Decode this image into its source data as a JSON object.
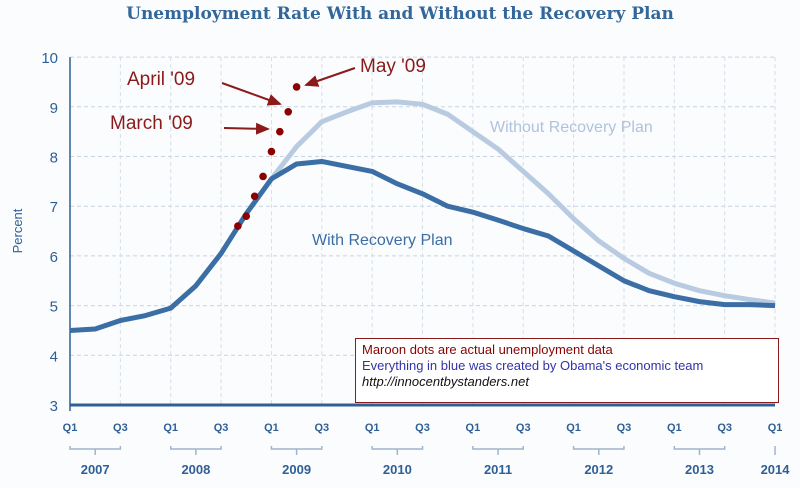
{
  "title": "Unemployment Rate With and Without the Recovery Plan",
  "chart_data": {
    "type": "line",
    "title": "Unemployment Rate With and Without the Recovery Plan",
    "ylabel": "Percent",
    "ylim": [
      3,
      10
    ],
    "yticks": [
      "3",
      "4",
      "5",
      "6",
      "7",
      "8",
      "9",
      "10"
    ],
    "x_quarter_labels": [
      "Q1",
      "Q3",
      "Q1",
      "Q3",
      "Q1",
      "Q3",
      "Q1",
      "Q3",
      "Q1",
      "Q3",
      "Q1",
      "Q3",
      "Q1",
      "Q3",
      "Q1"
    ],
    "x_year_labels": [
      "2007",
      "2008",
      "2009",
      "2010",
      "2011",
      "2012",
      "2013",
      "2014"
    ],
    "grid": true,
    "colors": {
      "with": "#3a6ea5",
      "without": "#b9cbe0",
      "actual": "#8b0000"
    },
    "series": [
      {
        "name": "With Recovery Plan",
        "start": "2007 Q1",
        "values": [
          4.5,
          4.53,
          4.7,
          4.8,
          4.95,
          5.4,
          6.05,
          6.85,
          7.55,
          7.85,
          7.9,
          7.8,
          7.7,
          7.45,
          7.25,
          7.0,
          6.88,
          6.72,
          6.55,
          6.4,
          6.1,
          5.8,
          5.5,
          5.3,
          5.18,
          5.08,
          5.02,
          5.02,
          5.0
        ]
      },
      {
        "name": "Without Recovery Plan",
        "start": "2009 Q1",
        "values": [
          7.55,
          8.2,
          8.7,
          8.9,
          9.08,
          9.1,
          9.05,
          8.85,
          8.5,
          8.15,
          7.7,
          7.25,
          6.75,
          6.3,
          5.95,
          5.65,
          5.45,
          5.3,
          5.2,
          5.12,
          5.05
        ]
      }
    ],
    "actual": {
      "months": [
        "2008-10",
        "2008-11",
        "2008-12",
        "2009-01",
        "2009-02",
        "2009-03",
        "2009-04",
        "2009-05"
      ],
      "values": [
        6.6,
        6.8,
        7.2,
        7.6,
        8.1,
        8.5,
        8.9,
        9.4
      ]
    },
    "annotations": [
      "May '09",
      "April '09",
      "March '09"
    ],
    "legend": [
      "Maroon dots are actual unemployment data",
      "Everything in blue was created by Obama's economic team",
      "http://innocentbystanders.net"
    ]
  }
}
